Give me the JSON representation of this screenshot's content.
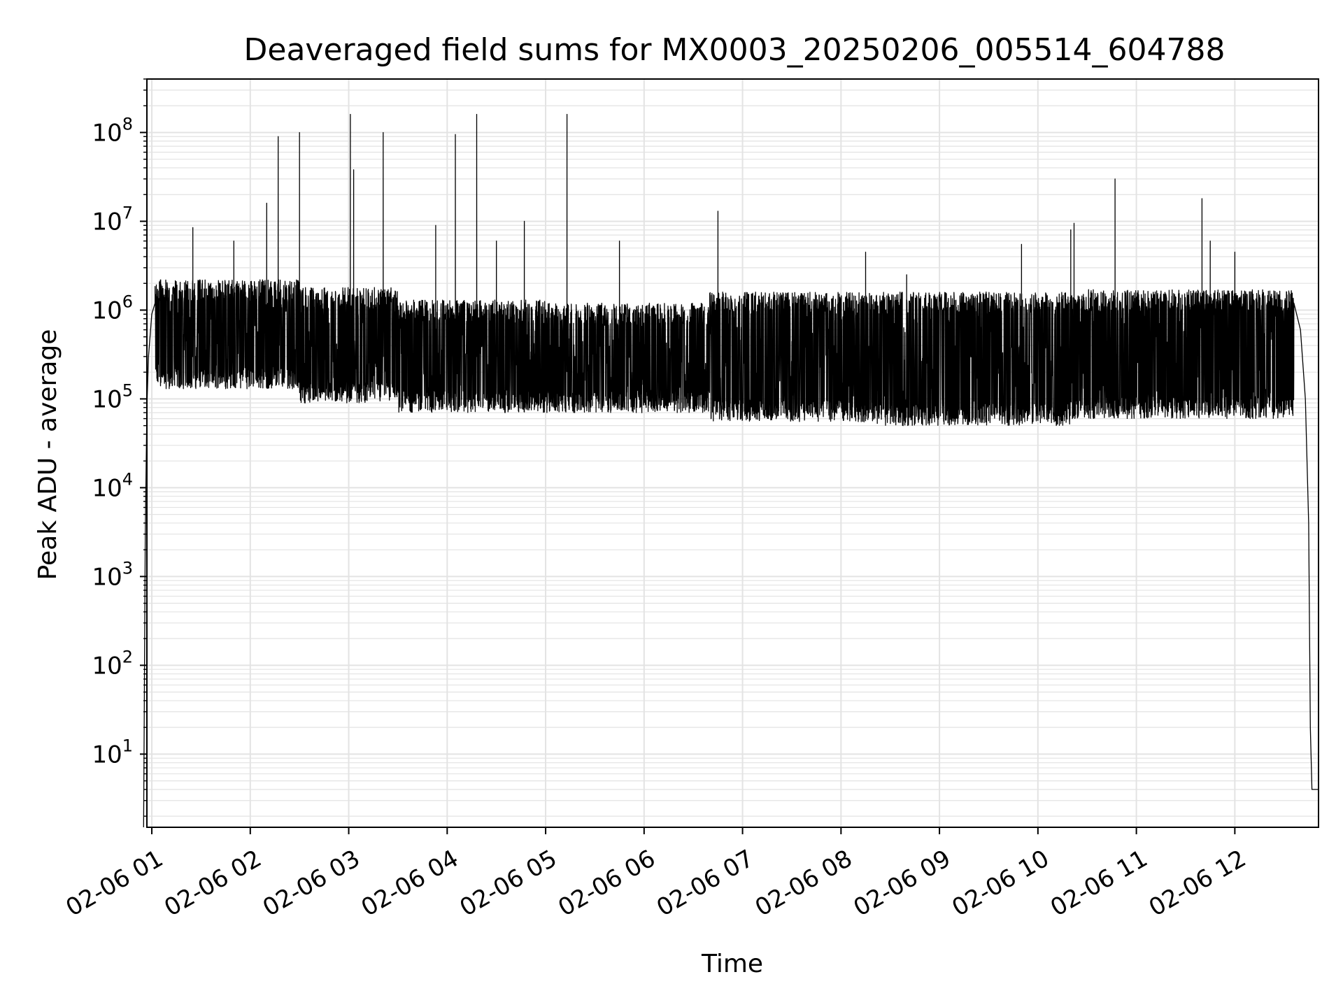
{
  "chart_data": {
    "type": "line",
    "title": "Deaveraged field sums for MX0003_20250206_005514_604788",
    "xlabel": "Time",
    "ylabel": "Peak ADU - average",
    "yscale": "log",
    "ylim": [
      1.5,
      400000000
    ],
    "xlim": [
      "02-06 00:57",
      "02-06 12:51"
    ],
    "grid": true,
    "line_color": "#000000",
    "grid_color": "#e3e3e3",
    "x_ticks": [
      {
        "value": "02-06 01:00",
        "label": "02-06 01"
      },
      {
        "value": "02-06 02:00",
        "label": "02-06 02"
      },
      {
        "value": "02-06 03:00",
        "label": "02-06 03"
      },
      {
        "value": "02-06 04:00",
        "label": "02-06 04"
      },
      {
        "value": "02-06 05:00",
        "label": "02-06 05"
      },
      {
        "value": "02-06 06:00",
        "label": "02-06 06"
      },
      {
        "value": "02-06 07:00",
        "label": "02-06 07"
      },
      {
        "value": "02-06 08:00",
        "label": "02-06 08"
      },
      {
        "value": "02-06 09:00",
        "label": "02-06 09"
      },
      {
        "value": "02-06 10:00",
        "label": "02-06 10"
      },
      {
        "value": "02-06 11:00",
        "label": "02-06 11"
      },
      {
        "value": "02-06 12:00",
        "label": "02-06 12"
      }
    ],
    "y_ticks": [
      {
        "value": 10,
        "base": "10",
        "exp": "1"
      },
      {
        "value": 100,
        "base": "10",
        "exp": "2"
      },
      {
        "value": 1000,
        "base": "10",
        "exp": "3"
      },
      {
        "value": 10000,
        "base": "10",
        "exp": "4"
      },
      {
        "value": 100000,
        "base": "10",
        "exp": "5"
      },
      {
        "value": 1000000,
        "base": "10",
        "exp": "6"
      },
      {
        "value": 10000000,
        "base": "10",
        "exp": "7"
      },
      {
        "value": 100000000,
        "base": "10",
        "exp": "8"
      }
    ],
    "series": [
      {
        "points": [
          {
            "x": "02-06 00:55",
            "y": 1.5
          },
          {
            "x": "02-06 00:56",
            "y": 3000
          },
          {
            "x": "02-06 00:57",
            "y": 80000
          },
          {
            "x": "02-06 00:58",
            "y": 300000
          },
          {
            "x": "02-06 01:00",
            "y": 900000
          },
          {
            "x": "02-06 01:02",
            "y": 1200000
          },
          {
            "x": "02-06 12:36",
            "y": 1200000
          },
          {
            "x": "02-06 12:40",
            "y": 600000
          },
          {
            "x": "02-06 12:43",
            "y": 100000
          },
          {
            "x": "02-06 12:45",
            "y": 4000
          },
          {
            "x": "02-06 12:46",
            "y": 20
          },
          {
            "x": "02-06 12:47",
            "y": 4
          },
          {
            "x": "02-06 12:51",
            "y": 4
          }
        ],
        "segments": [
          {
            "start": "02-06 01:02",
            "end": "02-06 02:30",
            "low": 130000,
            "high": 2200000
          },
          {
            "start": "02-06 02:30",
            "end": "02-06 03:30",
            "low": 90000,
            "high": 1800000
          },
          {
            "start": "02-06 03:30",
            "end": "02-06 05:00",
            "low": 70000,
            "high": 1300000
          },
          {
            "start": "02-06 05:00",
            "end": "02-06 06:40",
            "low": 70000,
            "high": 1200000
          },
          {
            "start": "02-06 06:40",
            "end": "02-06 08:20",
            "low": 55000,
            "high": 1600000
          },
          {
            "start": "02-06 08:20",
            "end": "02-06 10:20",
            "low": 50000,
            "high": 1600000
          },
          {
            "start": "02-06 10:20",
            "end": "02-06 12:36",
            "low": 60000,
            "high": 1700000
          }
        ],
        "peaks": [
          {
            "x": "02-06 01:25",
            "y": 8500000
          },
          {
            "x": "02-06 01:50",
            "y": 6000000
          },
          {
            "x": "02-06 02:10",
            "y": 16000000
          },
          {
            "x": "02-06 02:17",
            "y": 90000000
          },
          {
            "x": "02-06 02:30",
            "y": 100000000
          },
          {
            "x": "02-06 03:01",
            "y": 160000000
          },
          {
            "x": "02-06 03:03",
            "y": 38000000
          },
          {
            "x": "02-06 03:21",
            "y": 100000000
          },
          {
            "x": "02-06 03:53",
            "y": 9000000
          },
          {
            "x": "02-06 04:05",
            "y": 95000000
          },
          {
            "x": "02-06 04:18",
            "y": 160000000
          },
          {
            "x": "02-06 04:30",
            "y": 6000000
          },
          {
            "x": "02-06 04:47",
            "y": 10000000
          },
          {
            "x": "02-06 05:13",
            "y": 160000000
          },
          {
            "x": "02-06 05:45",
            "y": 6000000
          },
          {
            "x": "02-06 06:45",
            "y": 13000000
          },
          {
            "x": "02-06 08:15",
            "y": 4500000
          },
          {
            "x": "02-06 08:40",
            "y": 2500000
          },
          {
            "x": "02-06 09:50",
            "y": 5500000
          },
          {
            "x": "02-06 10:20",
            "y": 8000000
          },
          {
            "x": "02-06 10:22",
            "y": 9500000
          },
          {
            "x": "02-06 10:47",
            "y": 30000000
          },
          {
            "x": "02-06 11:40",
            "y": 18000000
          },
          {
            "x": "02-06 11:45",
            "y": 6000000
          },
          {
            "x": "02-06 12:00",
            "y": 4500000
          }
        ]
      }
    ]
  }
}
